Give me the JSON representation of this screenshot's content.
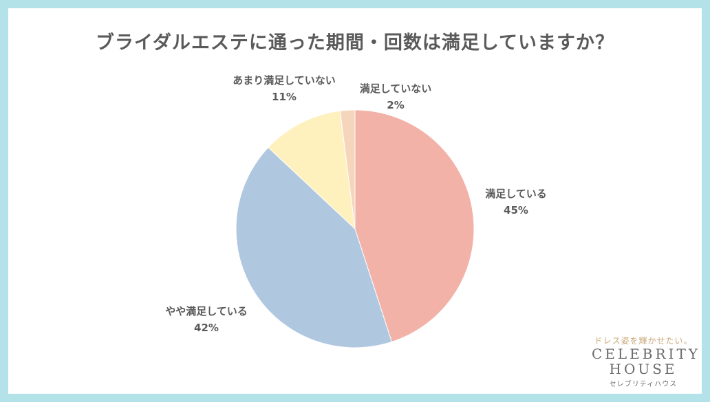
{
  "title": "ブライダルエステに通った期間・回数は満足していますか？",
  "chart_data": {
    "type": "pie",
    "title": "ブライダルエステに通った期間・回数は満足していますか？",
    "slices": [
      {
        "label": "満足している",
        "value": 45,
        "pct_text": "45%",
        "color": "#f2b2a8"
      },
      {
        "label": "やや満足している",
        "value": 42,
        "pct_text": "42%",
        "color": "#afc8e0"
      },
      {
        "label": "あまり満足していない",
        "value": 11,
        "pct_text": "11%",
        "color": "#fff1bd"
      },
      {
        "label": "満足していない",
        "value": 2,
        "pct_text": "2%",
        "color": "#f6d5bd"
      }
    ]
  },
  "brand": {
    "tagline": "ドレス姿を輝かせたい。",
    "line1": "CELEBRITY",
    "line2": "HOUSE",
    "kana": "セレブリティハウス"
  },
  "colors": {
    "frame": "#b3e3e8",
    "text": "#5a5a5a"
  }
}
